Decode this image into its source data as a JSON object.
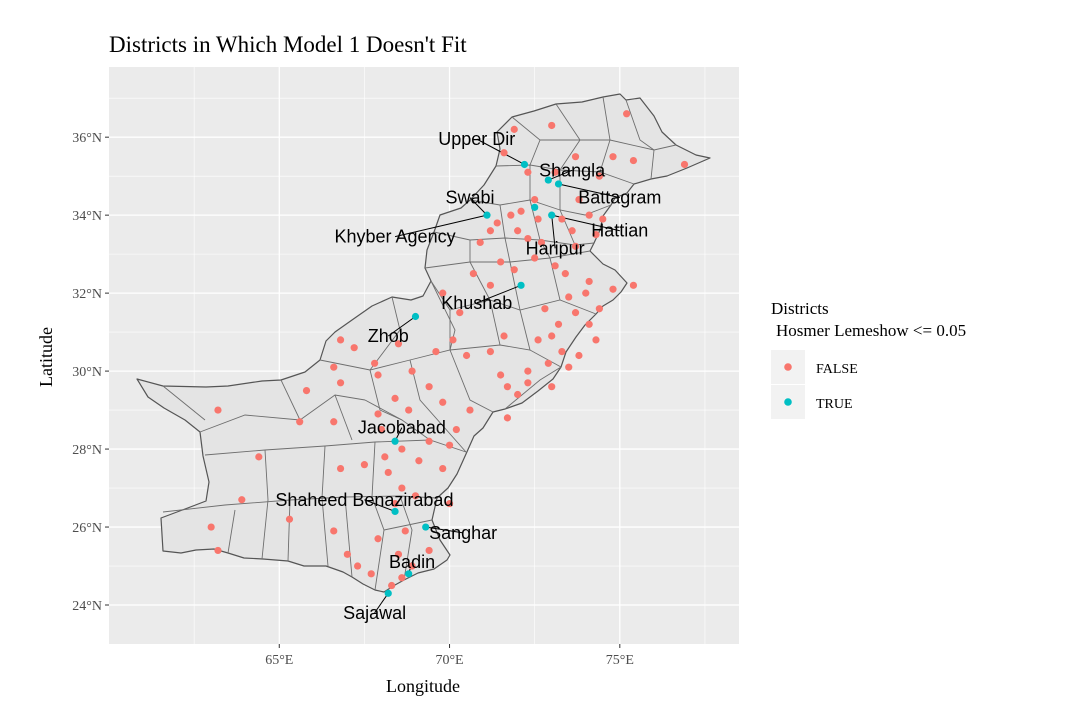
{
  "chart_data": {
    "type": "scatter",
    "title": "Districts in Which Model 1 Doesn't Fit",
    "xlabel": "Longitude",
    "ylabel": "Latitude",
    "xlim": [
      60.0,
      78.5
    ],
    "ylim": [
      23.0,
      37.8
    ],
    "x_ticks": [
      {
        "value": 65,
        "label": "65°E"
      },
      {
        "value": 70,
        "label": "70°E"
      },
      {
        "value": 75,
        "label": "75°E"
      }
    ],
    "y_ticks": [
      {
        "value": 24,
        "label": "24°N"
      },
      {
        "value": 26,
        "label": "26°N"
      },
      {
        "value": 28,
        "label": "28°N"
      },
      {
        "value": 30,
        "label": "30°N"
      },
      {
        "value": 32,
        "label": "32°N"
      },
      {
        "value": 34,
        "label": "34°N"
      },
      {
        "value": 36,
        "label": "36°N"
      }
    ],
    "grid": true,
    "legend": {
      "title_line1": "Districts",
      "title_line2": "Hosmer Lemeshow <= 0.05",
      "position": "right",
      "entries": [
        {
          "label": "FALSE",
          "color": "#F8766D"
        },
        {
          "label": "TRUE",
          "color": "#00BFC4"
        }
      ]
    },
    "colors": {
      "panel": "#EBEBEB",
      "grid": "#FFFFFF",
      "boundary": "#555555",
      "region_fill": "#E4E4E4"
    },
    "series": [
      {
        "name": "FALSE",
        "color": "#F8766D",
        "points": [
          [
            71.9,
            36.2
          ],
          [
            73.0,
            36.3
          ],
          [
            74.8,
            35.5
          ],
          [
            75.2,
            36.6
          ],
          [
            73.7,
            35.5
          ],
          [
            71.6,
            35.6
          ],
          [
            72.3,
            35.1
          ],
          [
            73.1,
            35.1
          ],
          [
            74.4,
            35.0
          ],
          [
            75.4,
            35.4
          ],
          [
            76.9,
            35.3
          ],
          [
            72.5,
            34.4
          ],
          [
            71.8,
            34.0
          ],
          [
            72.1,
            34.1
          ],
          [
            72.6,
            33.9
          ],
          [
            71.4,
            33.8
          ],
          [
            71.2,
            33.6
          ],
          [
            72.0,
            33.6
          ],
          [
            72.3,
            33.4
          ],
          [
            73.3,
            33.9
          ],
          [
            73.6,
            33.6
          ],
          [
            73.8,
            34.4
          ],
          [
            74.1,
            34.0
          ],
          [
            74.5,
            33.9
          ],
          [
            74.3,
            33.5
          ],
          [
            72.7,
            33.3
          ],
          [
            73.7,
            33.2
          ],
          [
            70.9,
            33.3
          ],
          [
            71.5,
            32.8
          ],
          [
            72.5,
            32.9
          ],
          [
            70.7,
            32.5
          ],
          [
            71.2,
            32.2
          ],
          [
            71.9,
            32.6
          ],
          [
            73.1,
            32.7
          ],
          [
            73.4,
            32.5
          ],
          [
            74.1,
            32.3
          ],
          [
            74.0,
            32.0
          ],
          [
            74.8,
            32.1
          ],
          [
            75.4,
            32.2
          ],
          [
            73.5,
            31.9
          ],
          [
            72.8,
            31.6
          ],
          [
            74.4,
            31.6
          ],
          [
            73.7,
            31.5
          ],
          [
            73.2,
            31.2
          ],
          [
            74.1,
            31.2
          ],
          [
            73.0,
            30.9
          ],
          [
            74.3,
            30.8
          ],
          [
            73.3,
            30.5
          ],
          [
            73.8,
            30.4
          ],
          [
            72.6,
            30.8
          ],
          [
            71.6,
            30.9
          ],
          [
            71.2,
            30.5
          ],
          [
            72.9,
            30.2
          ],
          [
            72.3,
            30.0
          ],
          [
            71.5,
            29.9
          ],
          [
            71.7,
            29.6
          ],
          [
            72.0,
            29.4
          ],
          [
            73.5,
            30.1
          ],
          [
            72.3,
            29.7
          ],
          [
            73.0,
            29.6
          ],
          [
            69.8,
            32.0
          ],
          [
            70.3,
            31.5
          ],
          [
            70.1,
            30.8
          ],
          [
            70.5,
            30.4
          ],
          [
            69.6,
            30.5
          ],
          [
            68.5,
            30.7
          ],
          [
            67.8,
            30.2
          ],
          [
            66.8,
            30.8
          ],
          [
            67.2,
            30.6
          ],
          [
            66.6,
            30.1
          ],
          [
            67.9,
            29.9
          ],
          [
            68.9,
            30.0
          ],
          [
            69.4,
            29.6
          ],
          [
            68.4,
            29.3
          ],
          [
            69.8,
            29.2
          ],
          [
            70.6,
            29.0
          ],
          [
            71.7,
            28.8
          ],
          [
            68.8,
            29.0
          ],
          [
            68.0,
            28.5
          ],
          [
            66.6,
            28.7
          ],
          [
            65.6,
            28.7
          ],
          [
            63.2,
            29.0
          ],
          [
            66.8,
            29.7
          ],
          [
            65.8,
            29.5
          ],
          [
            67.9,
            28.9
          ],
          [
            68.6,
            28.0
          ],
          [
            69.4,
            28.2
          ],
          [
            70.2,
            28.5
          ],
          [
            70.0,
            28.1
          ],
          [
            68.1,
            27.8
          ],
          [
            69.1,
            27.7
          ],
          [
            69.8,
            27.5
          ],
          [
            67.5,
            27.6
          ],
          [
            66.8,
            27.5
          ],
          [
            68.2,
            27.4
          ],
          [
            64.4,
            27.8
          ],
          [
            63.9,
            26.7
          ],
          [
            65.3,
            26.2
          ],
          [
            63.0,
            26.0
          ],
          [
            63.2,
            25.4
          ],
          [
            66.6,
            25.9
          ],
          [
            67.9,
            25.7
          ],
          [
            68.7,
            25.9
          ],
          [
            69.4,
            25.4
          ],
          [
            68.5,
            25.3
          ],
          [
            68.9,
            25.0
          ],
          [
            67.3,
            25.0
          ],
          [
            67.7,
            24.8
          ],
          [
            68.3,
            24.5
          ],
          [
            67.0,
            25.3
          ],
          [
            68.6,
            24.7
          ],
          [
            68.6,
            27.0
          ],
          [
            69.0,
            26.8
          ],
          [
            70.0,
            26.6
          ],
          [
            68.4,
            26.6
          ]
        ]
      },
      {
        "name": "TRUE",
        "color": "#00BFC4",
        "points": [
          [
            72.2,
            35.3
          ],
          [
            72.9,
            34.9
          ],
          [
            73.2,
            34.8
          ],
          [
            72.5,
            34.2
          ],
          [
            71.1,
            34.0
          ],
          [
            73.0,
            34.0
          ],
          [
            72.1,
            32.2
          ],
          [
            69.0,
            31.4
          ],
          [
            68.4,
            28.2
          ],
          [
            68.4,
            26.4
          ],
          [
            69.3,
            26.0
          ],
          [
            68.8,
            24.8
          ],
          [
            68.2,
            24.3
          ]
        ]
      }
    ],
    "annotations": [
      {
        "text": "Upper Dir",
        "lon": 70.8,
        "lat": 35.95,
        "target": [
          72.2,
          35.3
        ]
      },
      {
        "text": "Shangla",
        "lon": 73.6,
        "lat": 35.15,
        "target": [
          72.9,
          34.9
        ]
      },
      {
        "text": "Battagram",
        "lon": 75.0,
        "lat": 34.45,
        "target": [
          73.2,
          34.8
        ]
      },
      {
        "text": "Swabi",
        "lon": 70.6,
        "lat": 34.45,
        "target": [
          71.1,
          34.0
        ]
      },
      {
        "text": "Hattian",
        "lon": 75.0,
        "lat": 33.6,
        "target": [
          73.0,
          34.0
        ]
      },
      {
        "text": "Khyber Agency",
        "lon": 68.4,
        "lat": 33.45,
        "target": [
          71.1,
          34.0
        ]
      },
      {
        "text": "Haripur",
        "lon": 73.1,
        "lat": 33.15,
        "target": [
          73.0,
          34.0
        ]
      },
      {
        "text": "Khushab",
        "lon": 70.8,
        "lat": 31.75,
        "target": [
          72.1,
          32.2
        ]
      },
      {
        "text": "Zhob",
        "lon": 68.2,
        "lat": 30.9,
        "target": [
          69.0,
          31.4
        ]
      },
      {
        "text": "Jacobabad",
        "lon": 68.6,
        "lat": 28.55,
        "target": [
          68.4,
          28.2
        ]
      },
      {
        "text": "Shaheed Benazirabad",
        "lon": 67.5,
        "lat": 26.7,
        "target": [
          68.4,
          26.4
        ]
      },
      {
        "text": "Sanghar",
        "lon": 70.4,
        "lat": 25.85,
        "target": [
          69.3,
          26.0
        ]
      },
      {
        "text": "Badin",
        "lon": 68.9,
        "lat": 25.1,
        "target": [
          68.8,
          24.8
        ]
      },
      {
        "text": "Sajawal",
        "lon": 67.8,
        "lat": 23.8,
        "target": [
          68.2,
          24.3
        ]
      }
    ]
  }
}
